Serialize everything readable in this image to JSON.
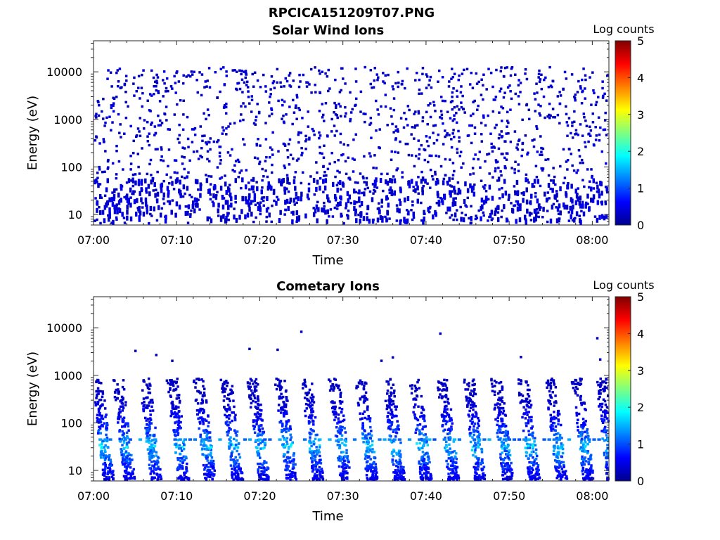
{
  "figure": {
    "title": "RPCICA151209T07.PNG",
    "colormap": [
      "#00008f",
      "#0000ff",
      "#0080ff",
      "#00ffff",
      "#80ff80",
      "#ffff00",
      "#ff8000",
      "#ff0000",
      "#800000"
    ]
  },
  "chart_data": [
    {
      "type": "heatmap",
      "title": "Solar Wind Ions",
      "xlabel": "Time",
      "ylabel": "Energy (eV)",
      "x_range": [
        "07:00",
        "08:02"
      ],
      "y_scale": "log",
      "ylim": [
        6,
        45000
      ],
      "x_ticks": [
        "07:00",
        "07:10",
        "07:20",
        "07:30",
        "07:40",
        "07:50",
        "08:00"
      ],
      "y_ticks": [
        "10",
        "100",
        "1000",
        "10000"
      ],
      "colorbar": {
        "label": "Log counts",
        "range": [
          0,
          5
        ],
        "ticks": [
          "0",
          "1",
          "2",
          "3",
          "4",
          "5"
        ]
      },
      "description_of_data": "sparse scattered counts near log count 0-0.5 across all energies 6-12000 eV, denser below 50 eV",
      "sample_cells": [
        {
          "time_min": 1,
          "energy_ev": 8,
          "log_counts": 0.3
        },
        {
          "time_min": 5,
          "energy_ev": 40,
          "log_counts": 0.4
        },
        {
          "time_min": 15,
          "energy_ev": 8,
          "log_counts": 0.4
        },
        {
          "time_min": 25,
          "energy_ev": 300,
          "log_counts": 0.3
        },
        {
          "time_min": 35,
          "energy_ev": 30,
          "log_counts": 0.5
        },
        {
          "time_min": 45,
          "energy_ev": 2000,
          "log_counts": 0.3
        },
        {
          "time_min": 55,
          "energy_ev": 60,
          "log_counts": 0.4
        },
        {
          "time_min": 60,
          "energy_ev": 9000,
          "log_counts": 0.3
        }
      ]
    },
    {
      "type": "heatmap",
      "title": "Cometary Ions",
      "xlabel": "Time",
      "ylabel": "Energy (eV)",
      "x_range": [
        "07:00",
        "08:02"
      ],
      "y_scale": "log",
      "ylim": [
        6,
        45000
      ],
      "x_ticks": [
        "07:00",
        "07:10",
        "07:20",
        "07:30",
        "07:40",
        "07:50",
        "08:00"
      ],
      "y_ticks": [
        "10",
        "100",
        "1000",
        "10000"
      ],
      "colorbar": {
        "label": "Log counts",
        "range": [
          0,
          5
        ],
        "ticks": [
          "0",
          "1",
          "2",
          "3",
          "4",
          "5"
        ]
      },
      "description_of_data": "periodic bursts roughly every 3.3 min, peak ~1.8 log counts near 20-40 eV, extending to ~800 eV",
      "burst_times_min": [
        0.3,
        2.8,
        6.0,
        9.3,
        12.5,
        15.8,
        19.0,
        22.3,
        25.5,
        28.8,
        32.0,
        35.3,
        38.5,
        41.8,
        45.0,
        48.3,
        51.5,
        54.8,
        58.0,
        60.9
      ],
      "burst_peak_log_counts": 1.8,
      "burst_peak_energy_ev": 30,
      "burst_max_energy_ev": 800
    }
  ]
}
